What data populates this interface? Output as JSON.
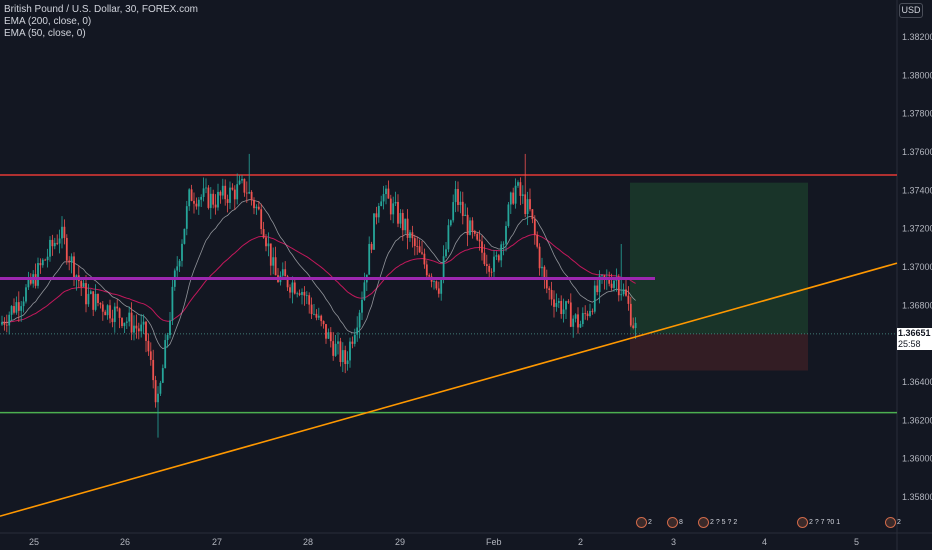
{
  "legend": {
    "symbol": "British Pound / U.S. Dollar, 30, FOREX.com",
    "ema1": "EMA (200, close, 0)",
    "ema2": "EMA (50, close, 0)"
  },
  "currency": "USD",
  "y_ticks": [
    "1.38200",
    "1.38000",
    "1.37800",
    "1.37600",
    "1.37400",
    "1.37200",
    "1.37000",
    "1.36800",
    "1.36600",
    "1.36400",
    "1.36200",
    "1.36000",
    "1.35800"
  ],
  "x_ticks": [
    "25",
    "26",
    "27",
    "28",
    "29",
    "Feb",
    "2",
    "3",
    "4",
    "5"
  ],
  "current_price": "1.36651",
  "countdown": "25:58",
  "events": [
    {
      "count": "2"
    },
    {
      "count": "8"
    },
    {
      "count": "2 ? 5 ? 2"
    },
    {
      "count": "2 ? 7 ?0 1"
    },
    {
      "count": "2"
    }
  ],
  "colors": {
    "up": "#26a69a",
    "down": "#ef5350",
    "resistance": "#e53935",
    "support": "#4caf50",
    "pivot": "#9c27b0",
    "trendline": "#ff9800",
    "ema200": "#c2185b",
    "ema50": "#b0b3b8"
  },
  "chart_data": {
    "type": "candlestick",
    "symbol": "British Pound / U.S. Dollar, 30, FOREX.com",
    "ylim": [
      1.3555,
      1.3835
    ],
    "horizontal_levels": [
      {
        "price": 1.3748,
        "color": "#e53935"
      },
      {
        "price": 1.3694,
        "color": "#9c27b0"
      },
      {
        "price": 1.3624,
        "color": "#4caf50"
      }
    ],
    "trendline": {
      "from_price": 1.357,
      "to_price": 1.3702
    },
    "position": {
      "entry": 1.36651,
      "target": 1.3744,
      "stop": 1.3646
    },
    "candles": []
  }
}
